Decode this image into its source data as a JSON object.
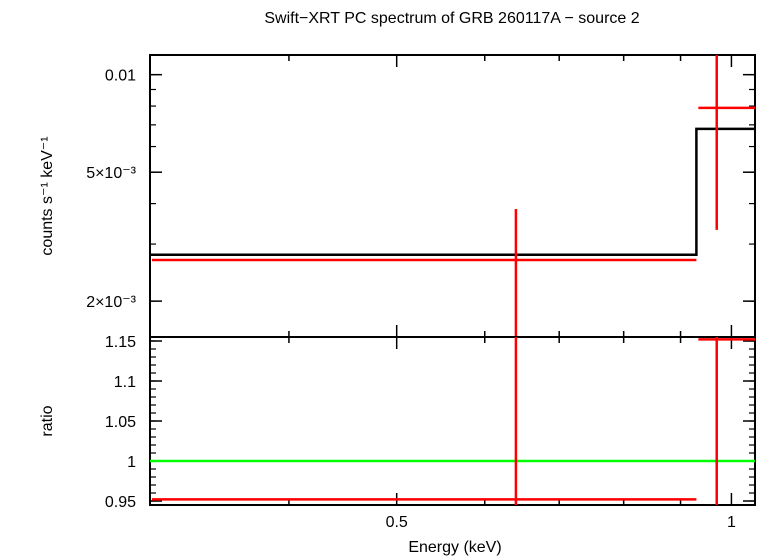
{
  "chart_data": {
    "type": "line",
    "title": "Swift−XRT PC spectrum of GRB 260117A − source 2",
    "xlabel": "Energy (keV)",
    "xscale": "log",
    "xlim": [
      0.3,
      1.05
    ],
    "x_ticks": [
      {
        "value": 0.5,
        "label": "0.5"
      },
      {
        "value": 1.0,
        "label": "1"
      }
    ],
    "panels": [
      {
        "id": "spectrum",
        "ylabel": "counts s⁻¹ keV⁻¹",
        "yscale": "log",
        "ylim": [
          0.00155,
          0.0115
        ],
        "y_ticks": [
          {
            "value": 0.01,
            "label": "0.01"
          },
          {
            "value": 0.005,
            "label": "5×10⁻³"
          },
          {
            "value": 0.002,
            "label": "2×10⁻³"
          }
        ],
        "model": {
          "color": "#000000",
          "steps": [
            {
              "x0": 0.3,
              "x1": 0.93,
              "y": 0.00278
            },
            {
              "x0": 0.93,
              "x1": 1.05,
              "y": 0.0068
            }
          ]
        },
        "data": {
          "color": "#ff0000",
          "points": [
            {
              "x": 0.64,
              "xlo": 0.3,
              "xhi": 0.93,
              "y": 0.00268,
              "ylo": 0.00155,
              "yhi": 0.00385
            },
            {
              "x": 0.97,
              "xlo": 0.93,
              "xhi": 1.05,
              "y": 0.0079,
              "ylo": 0.00332,
              "yhi": 0.0115
            }
          ]
        }
      },
      {
        "id": "ratio",
        "ylabel": "ratio",
        "yscale": "linear",
        "ylim": [
          0.945,
          1.155
        ],
        "y_ticks": [
          {
            "value": 0.95,
            "label": "0.95"
          },
          {
            "value": 1.0,
            "label": "1"
          },
          {
            "value": 1.05,
            "label": "1.05"
          },
          {
            "value": 1.1,
            "label": "1.1"
          },
          {
            "value": 1.15,
            "label": "1.15"
          }
        ],
        "reference_line": {
          "y": 1.0,
          "color": "#00ff00"
        },
        "data": {
          "color": "#ff0000",
          "points": [
            {
              "x": 0.64,
              "xlo": 0.3,
              "xhi": 0.93,
              "y": 0.952,
              "ylo": 0.945,
              "yhi": 1.155
            },
            {
              "x": 0.97,
              "xlo": 0.93,
              "xhi": 1.05,
              "y": 1.152,
              "ylo": 0.945,
              "yhi": 1.155
            }
          ]
        }
      }
    ]
  }
}
